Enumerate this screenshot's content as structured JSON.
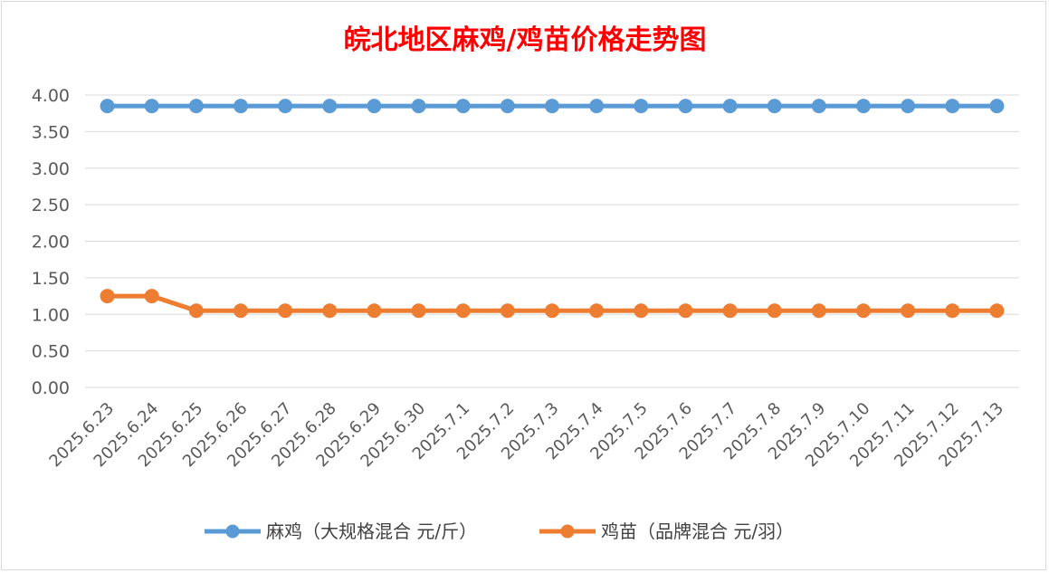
{
  "chart_data": {
    "type": "line",
    "title": "皖北地区麻鸡/鸡苗价格走势图",
    "xlabel": "",
    "ylabel": "",
    "ylim": [
      0,
      4
    ],
    "yticks": [
      "0.00",
      "0.50",
      "1.00",
      "1.50",
      "2.00",
      "2.50",
      "3.00",
      "3.50",
      "4.00"
    ],
    "ytick_values": [
      0,
      0.5,
      1,
      1.5,
      2,
      2.5,
      3,
      3.5,
      4
    ],
    "grid": true,
    "legend_position": "bottom",
    "categories": [
      "2025.6.23",
      "2025.6.24",
      "2025.6.25",
      "2025.6.26",
      "2025.6.27",
      "2025.6.28",
      "2025.6.29",
      "2025.6.30",
      "2025.7.1",
      "2025.7.2",
      "2025.7.3",
      "2025.7.4",
      "2025.7.5",
      "2025.7.6",
      "2025.7.7",
      "2025.7.8",
      "2025.7.9",
      "2025.7.10",
      "2025.7.11",
      "2025.7.12",
      "2025.7.13"
    ],
    "series": [
      {
        "name": "麻鸡（大规格混合 元/斤）",
        "color": "#5b9bd5",
        "values": [
          3.85,
          3.85,
          3.85,
          3.85,
          3.85,
          3.85,
          3.85,
          3.85,
          3.85,
          3.85,
          3.85,
          3.85,
          3.85,
          3.85,
          3.85,
          3.85,
          3.85,
          3.85,
          3.85,
          3.85,
          3.85
        ]
      },
      {
        "name": "鸡苗（品牌混合 元/羽）",
        "color": "#ed7d31",
        "values": [
          1.25,
          1.25,
          1.05,
          1.05,
          1.05,
          1.05,
          1.05,
          1.05,
          1.05,
          1.05,
          1.05,
          1.05,
          1.05,
          1.05,
          1.05,
          1.05,
          1.05,
          1.05,
          1.05,
          1.05,
          1.05
        ]
      }
    ]
  }
}
